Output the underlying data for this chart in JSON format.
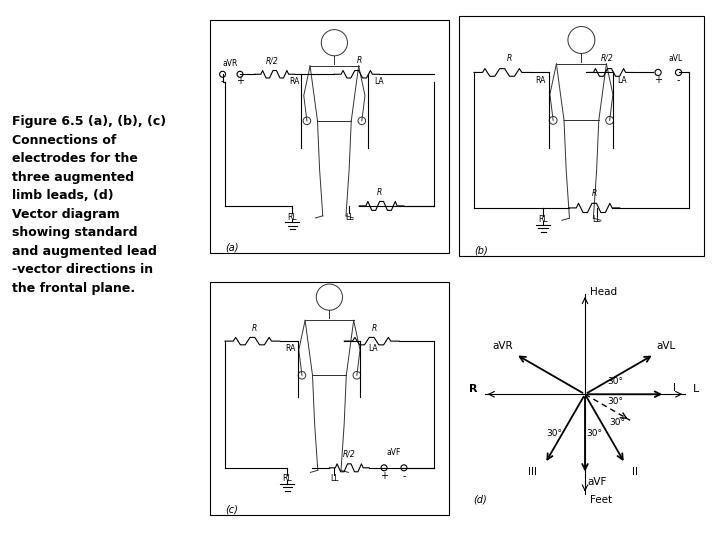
{
  "caption_lines": [
    "Figure 6.5 (a), (b), (c)",
    "Connections of",
    "electrodes for the",
    "three augmented",
    "limb leads, (d)",
    "Vector diagram",
    "showing standard",
    "and augmented lead",
    "-vector directions in",
    "the frontal plane."
  ],
  "bg_color": "#ffffff",
  "panel_labels": [
    "(a)",
    "(b)",
    "(c)",
    "(d)"
  ],
  "gray_body": "#888888",
  "dark": "#111111"
}
